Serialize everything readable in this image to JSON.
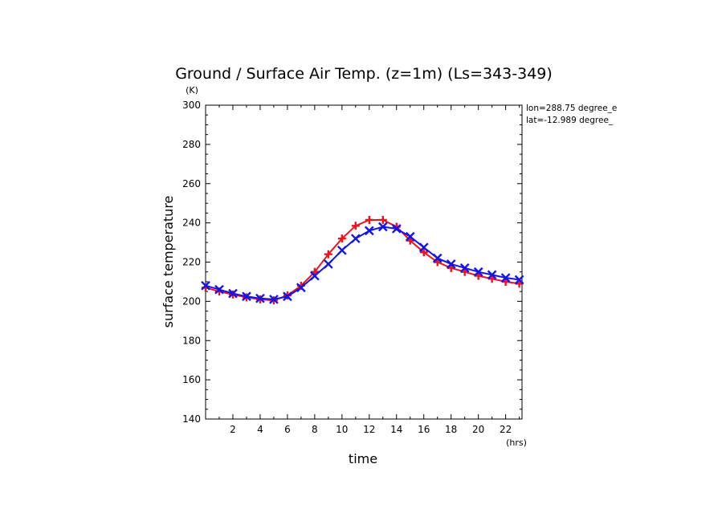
{
  "chart_data": {
    "type": "line",
    "title": "Ground / Surface Air Temp. (z=1m) (Ls=343-349)",
    "xlabel": "time",
    "ylabel": "surface temperature",
    "x_unit": "(hrs)",
    "y_unit": "(K)",
    "xlim": [
      0,
      23.2
    ],
    "ylim": [
      140,
      300
    ],
    "x_ticks": [
      2,
      4,
      6,
      8,
      10,
      12,
      14,
      16,
      18,
      20,
      22
    ],
    "y_ticks": [
      140,
      160,
      180,
      200,
      220,
      240,
      260,
      280,
      300
    ],
    "annotations": [
      "lon=288.75 degree_e",
      "lat=-12.989 degree_"
    ],
    "x": [
      0,
      1,
      2,
      3,
      4,
      5,
      6,
      7,
      8,
      9,
      10,
      11,
      12,
      13,
      14,
      15,
      16,
      17,
      18,
      19,
      20,
      21,
      22,
      23
    ],
    "series": [
      {
        "color": "#e8141e",
        "marker": "plus",
        "values": [
          207,
          205,
          203.5,
          202,
          201,
          200.5,
          203,
          208,
          215,
          224,
          232,
          238.5,
          241.5,
          241.5,
          238,
          231,
          225,
          220,
          217,
          215,
          213,
          211.5,
          210,
          209
        ]
      },
      {
        "color": "#1414e8",
        "marker": "cross",
        "values": [
          208,
          206,
          204,
          202.5,
          201.5,
          201,
          202.5,
          207,
          213,
          219,
          226,
          232,
          236,
          238,
          237,
          233,
          227.5,
          222,
          219,
          217,
          215,
          213.5,
          212,
          211
        ]
      }
    ]
  }
}
